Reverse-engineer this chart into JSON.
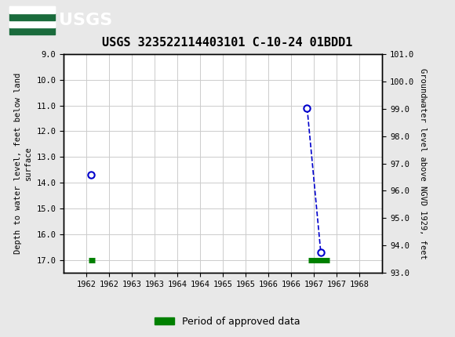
{
  "title": "USGS 323522114403101 C-10-24 01BDD1",
  "ylabel_left": "Depth to water level, feet below land\nsurface",
  "ylabel_right": "Groundwater level above NGVD 1929, feet",
  "xlim": [
    1961.5,
    1968.5
  ],
  "ylim_left": [
    9.0,
    17.5
  ],
  "ylim_right": [
    101.0,
    93.0
  ],
  "xtick_positions": [
    1962,
    1962.5,
    1963,
    1963.5,
    1964,
    1964.5,
    1965,
    1965.5,
    1966,
    1966.5,
    1967,
    1967.5,
    1968
  ],
  "xtick_labels": [
    "1962",
    "1962",
    "1963",
    "1963",
    "1964",
    "1964",
    "1965",
    "1965",
    "1966",
    "1966",
    "1967",
    "1967",
    "1968"
  ],
  "yticks_left": [
    9.0,
    10.0,
    11.0,
    12.0,
    13.0,
    14.0,
    15.0,
    16.0,
    17.0
  ],
  "yticks_right": [
    101.0,
    100.0,
    99.0,
    98.0,
    97.0,
    96.0,
    95.0,
    94.0,
    93.0
  ],
  "data_points_x": [
    1962.1,
    1966.85,
    1967.15
  ],
  "data_points_y": [
    13.7,
    11.1,
    16.7
  ],
  "line_color": "#0000cc",
  "marker_color": "#0000cc",
  "bar_segments": [
    {
      "x_start": 1962.05,
      "x_end": 1962.18,
      "y": 17.0
    },
    {
      "x_start": 1966.88,
      "x_end": 1967.35,
      "y": 17.0
    }
  ],
  "bar_color": "#008000",
  "header_bg": "#1a6b3c",
  "bg_color": "#e8e8e8",
  "plot_bg": "#ffffff",
  "grid_color": "#cccccc",
  "legend_label": "Period of approved data"
}
